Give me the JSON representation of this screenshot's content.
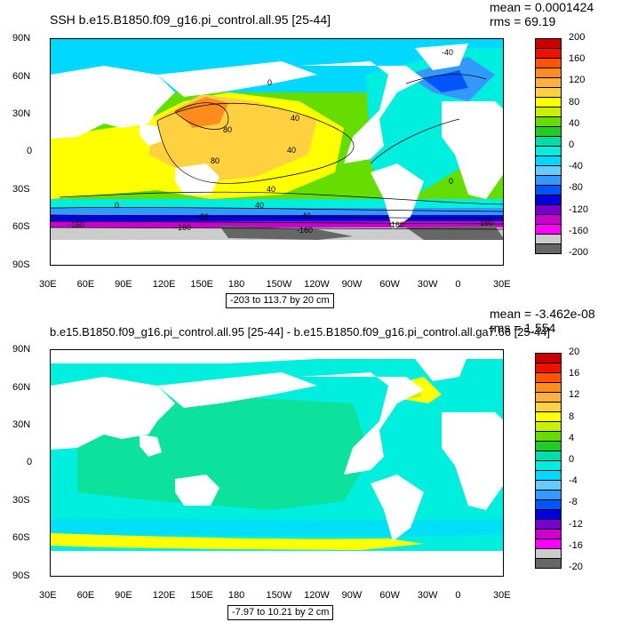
{
  "panel1": {
    "title": "SSH b.e15.B1850.f09_g16.pi_control.all.95 [25-44]",
    "mean_text": "mean = 0.0001424",
    "rms_text": "rms = 69.19",
    "range_text": "-203 to 113.7 by 20 cm",
    "colorbar_labels": [
      "200",
      "160",
      "120",
      "80",
      "40",
      "0",
      "-40",
      "-80",
      "-120",
      "-160",
      "-200"
    ],
    "colorbar_colors": [
      "#c80000",
      "#ee1000",
      "#ff5500",
      "#ff8c1c",
      "#ffb040",
      "#ffd040",
      "#ffff00",
      "#c8f000",
      "#66dd00",
      "#22cc22",
      "#00ddaa",
      "#00eedd",
      "#00d8ff",
      "#66ccff",
      "#3399ff",
      "#0055ff",
      "#0000dd",
      "#7700cc",
      "#cc00cc",
      "#ff00ff",
      "#cccccc",
      "#666666"
    ],
    "contour_labels": [
      "0",
      "80",
      "40",
      "80",
      "0",
      "40",
      "40",
      "0",
      "40",
      "-160",
      "-160",
      "-80",
      "-40",
      "-40",
      "-160",
      "-160",
      "-160"
    ]
  },
  "panel2": {
    "title": "b.e15.B1850.f09_g16.pi_control.all.95 [25-44] - b.e15.B1850.f09_g16.pi_control.all.ga7.66 [25-44]",
    "mean_text": "mean = -3.462e-08",
    "rms_text": "rms = 1.554",
    "range_text": "-7.97 to 10.21 by 2 cm",
    "colorbar_labels": [
      "20",
      "16",
      "12",
      "8",
      "4",
      "0",
      "-4",
      "-8",
      "-12",
      "-16",
      "-20"
    ],
    "colorbar_colors": [
      "#c80000",
      "#ee1000",
      "#ff5500",
      "#ff8c1c",
      "#ffb040",
      "#ffd040",
      "#ffff00",
      "#c8f000",
      "#66dd00",
      "#22cc22",
      "#00ddaa",
      "#00eedd",
      "#00d8ff",
      "#66ccff",
      "#3399ff",
      "#0055ff",
      "#0000dd",
      "#7700cc",
      "#cc00cc",
      "#ff00ff",
      "#cccccc",
      "#666666"
    ]
  },
  "axes": {
    "lat_labels": [
      "90N",
      "60N",
      "30N",
      "0",
      "30S",
      "60S",
      "90S"
    ],
    "lon_labels": [
      "30E",
      "60E",
      "90E",
      "120E",
      "150E",
      "180",
      "150W",
      "120W",
      "90W",
      "60W",
      "30W",
      "0",
      "30E"
    ]
  },
  "colors": {
    "land": "#ffffff",
    "frame": "#000000"
  }
}
